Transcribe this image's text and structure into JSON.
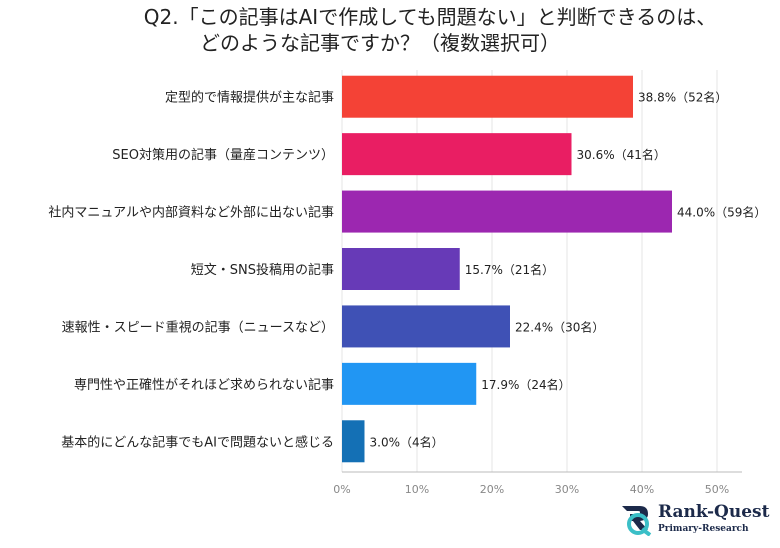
{
  "chart_data": {
    "type": "bar",
    "orientation": "horizontal",
    "title_line1": "Q2.「この記事はAIで作成しても問題ない」と判断できるのは、",
    "title_line2": "どのような記事ですか？（複数選択可）",
    "categories": [
      "定型的で情報提供が主な記事",
      "SEO対策用の記事（量産コンテンツ）",
      "社内マニュアルや内部資料など外部に出ない記事",
      "短文・SNS投稿用の記事",
      "速報性・スピード重視の記事（ニュースなど）",
      "専門性や正確性がそれほど求められない記事",
      "基本的にどんな記事でもAIで問題ないと感じる"
    ],
    "values": [
      38.8,
      30.6,
      44.0,
      15.7,
      22.4,
      17.9,
      3.0
    ],
    "data_labels": [
      "38.8%（52名）",
      "30.6%（41名）",
      "44.0%（59名）",
      "15.7%（21名）",
      "22.4%（30名）",
      "17.9%（24名）",
      "3.0%（4名）"
    ],
    "colors": [
      "#f44236",
      "#e91e63",
      "#9c27b0",
      "#673ab7",
      "#3f51b5",
      "#2196f3",
      "#1470b5"
    ],
    "xlim": [
      0,
      50
    ],
    "xticks": [
      "0%",
      "10%",
      "20%",
      "30%",
      "40%",
      "50%"
    ],
    "grid": true,
    "xlabel": "",
    "ylabel": ""
  },
  "logo": {
    "name": "Rank-Quest",
    "sub": "Primary-Research"
  }
}
